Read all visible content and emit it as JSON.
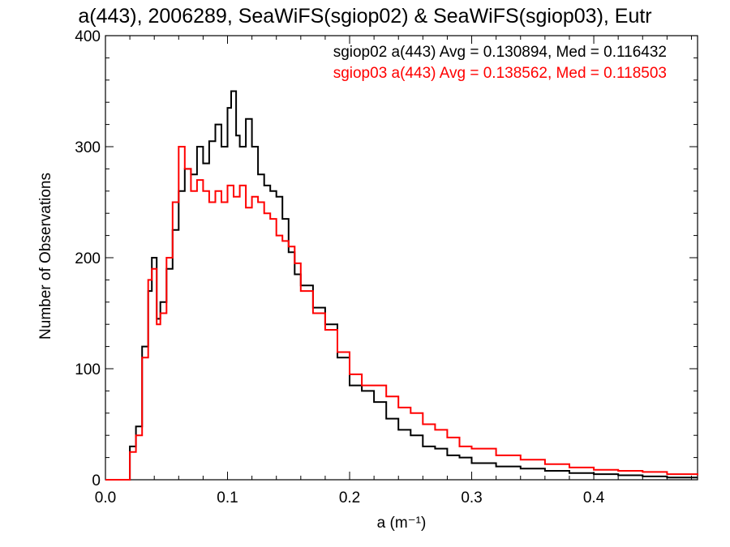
{
  "chart_data": {
    "type": "line",
    "step": true,
    "title": "a(443), 2006289, SeaWiFS(sgiop02) & SeaWiFS(sgiop03), Eutr",
    "xlabel": "a (m⁻¹)",
    "ylabel": "Number of Observations",
    "xlim": [
      0.0,
      0.485
    ],
    "ylim": [
      0,
      400
    ],
    "xticks": [
      0.0,
      0.1,
      0.2,
      0.3,
      0.4
    ],
    "xtick_labels": [
      "0.0",
      "0.1",
      "0.2",
      "0.3",
      "0.4"
    ],
    "yticks": [
      0,
      100,
      200,
      300,
      400
    ],
    "ytick_labels": [
      "0",
      "100",
      "200",
      "300",
      "400"
    ],
    "grid": false,
    "legend_placement": "top-right",
    "legend": [
      "sgiop02 a(443) Avg = 0.130894, Med = 0.116432",
      "sgiop03 a(443) Avg = 0.138562, Med = 0.118503"
    ],
    "series": [
      {
        "color": "#000000",
        "x": [
          0.0,
          0.015,
          0.02,
          0.025,
          0.03,
          0.035,
          0.038,
          0.042,
          0.045,
          0.05,
          0.055,
          0.06,
          0.065,
          0.07,
          0.075,
          0.08,
          0.085,
          0.09,
          0.095,
          0.1,
          0.103,
          0.107,
          0.11,
          0.115,
          0.12,
          0.125,
          0.13,
          0.135,
          0.14,
          0.145,
          0.15,
          0.155,
          0.16,
          0.17,
          0.18,
          0.19,
          0.2,
          0.21,
          0.22,
          0.23,
          0.24,
          0.25,
          0.26,
          0.27,
          0.28,
          0.29,
          0.3,
          0.32,
          0.34,
          0.36,
          0.38,
          0.4,
          0.42,
          0.44,
          0.46,
          0.485
        ],
        "y": [
          0,
          0,
          30,
          48,
          120,
          170,
          200,
          145,
          160,
          190,
          225,
          260,
          280,
          275,
          300,
          285,
          305,
          320,
          300,
          335,
          350,
          310,
          300,
          325,
          300,
          275,
          265,
          260,
          255,
          235,
          205,
          185,
          175,
          155,
          140,
          110,
          85,
          80,
          70,
          55,
          45,
          40,
          30,
          28,
          22,
          20,
          15,
          12,
          10,
          8,
          6,
          5,
          4,
          3,
          2,
          2
        ]
      },
      {
        "color": "#ff0000",
        "x": [
          0.0,
          0.015,
          0.02,
          0.025,
          0.03,
          0.035,
          0.038,
          0.042,
          0.045,
          0.05,
          0.055,
          0.06,
          0.065,
          0.07,
          0.075,
          0.08,
          0.085,
          0.09,
          0.095,
          0.1,
          0.105,
          0.11,
          0.115,
          0.12,
          0.125,
          0.13,
          0.135,
          0.14,
          0.145,
          0.15,
          0.155,
          0.16,
          0.17,
          0.18,
          0.19,
          0.2,
          0.21,
          0.22,
          0.23,
          0.24,
          0.25,
          0.26,
          0.27,
          0.28,
          0.29,
          0.3,
          0.32,
          0.34,
          0.36,
          0.38,
          0.4,
          0.42,
          0.44,
          0.46,
          0.485
        ],
        "y": [
          0,
          0,
          25,
          40,
          110,
          180,
          190,
          140,
          150,
          200,
          250,
          300,
          280,
          260,
          270,
          260,
          250,
          260,
          250,
          265,
          255,
          265,
          245,
          255,
          250,
          240,
          235,
          220,
          215,
          210,
          195,
          170,
          150,
          135,
          115,
          95,
          85,
          85,
          75,
          65,
          60,
          50,
          45,
          38,
          30,
          28,
          22,
          18,
          14,
          11,
          9,
          8,
          7,
          5,
          4
        ]
      }
    ]
  }
}
